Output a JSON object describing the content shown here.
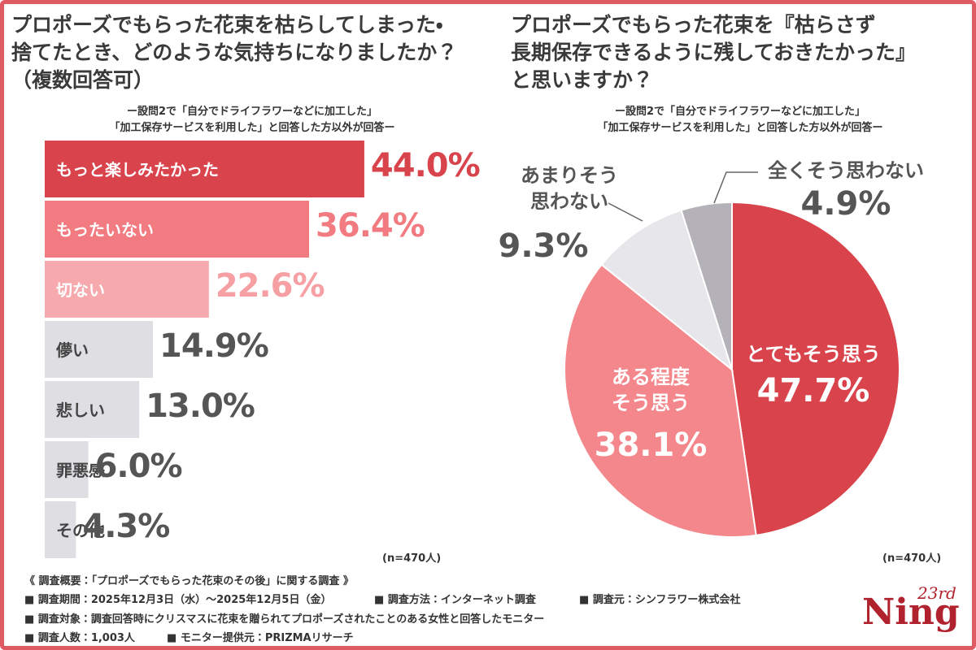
{
  "chart_data": [
    {
      "type": "bar",
      "orientation": "horizontal",
      "title": "プロポーズでもらった花束を枯らしてしまった・\n捨てたとき、どのような気持ちになりましたか？\n（複数回答可）",
      "subtitle": "ー設問2で「自分でドライフラワーなどに加工した」\n「加工保存サービスを利用した」と回答した方以外が回答ー",
      "categories": [
        "もっと楽しみたかった",
        "もったいない",
        "切ない",
        "儚い",
        "悲しい",
        "罪悪感",
        "その他"
      ],
      "values": [
        44.0,
        36.4,
        22.6,
        14.9,
        13.0,
        6.0,
        4.3
      ],
      "value_labels": [
        "44.0%",
        "36.4%",
        "22.6%",
        "14.9%",
        "13.0%",
        "6.0%",
        "4.3%"
      ],
      "colors": [
        "#d9434b",
        "#f17b81",
        "#f6aaae",
        "#dfdee3",
        "#dfdee3",
        "#dfdee3",
        "#dfdee3"
      ],
      "sample_size": "(n=470人)"
    },
    {
      "type": "pie",
      "title": "プロポーズでもらった花束を『枯らさず\n長期保存できるように残しておきたかった』\nと思いますか？",
      "subtitle": "ー設問2で「自分でドライフラワーなどに加工した」\n「加工保存サービスを利用した」と回答した方以外が回答ー",
      "categories": [
        "とてもそう思う",
        "ある程度\nそう思う",
        "あまりそう\n思わない",
        "全くそう思わない"
      ],
      "values": [
        47.7,
        38.1,
        9.3,
        4.9
      ],
      "value_labels": [
        "47.7%",
        "38.1%",
        "9.3%",
        "4.9%"
      ],
      "colors": [
        "#d9434b",
        "#f4878c",
        "#e7e6eb",
        "#b4b2b8"
      ],
      "sample_size": "(n=470人)"
    }
  ],
  "footer": {
    "heading": "《 調査概要：「プロポーズでもらった花束のその後」に関する調査 》",
    "items": [
      "調査期間：2025年12月3日（水）〜2025年12月5日（金）",
      "調査方法：インターネット調査",
      "調査元：シンフラワー株式会社",
      "調査対象：調査回答時にクリスマスに花束を贈られてプロポーズされたことのある女性と回答したモニター",
      "調査人数：1,003人",
      "モニター提供元：PRIZMAリサーチ"
    ]
  },
  "logo": {
    "edition": "23rd",
    "name": "Ning"
  }
}
